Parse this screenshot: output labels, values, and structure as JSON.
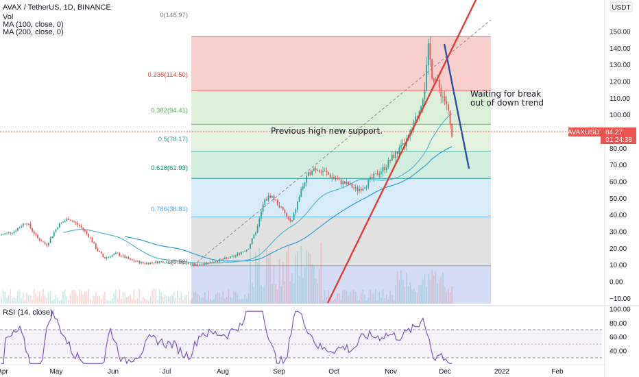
{
  "header": {
    "symbol_line": "AVAX / TetherUS, 1D, BINANCE",
    "vol_label": "Vol",
    "ma100_label": "MA (100, close, 0)",
    "ma200_label": "MA (200, close, 0)"
  },
  "price_axis": {
    "currency": "USDT",
    "ticks": [
      "150.00",
      "140.00",
      "130.00",
      "120.00",
      "110.00",
      "100.00",
      "90.00",
      "80.00",
      "70.00",
      "60.00",
      "50.00",
      "40.00",
      "30.00",
      "20.00",
      "10.00",
      "0.00",
      "−10.00"
    ],
    "tag_symbol": "AVAXUSDT",
    "tag_price": "84.27",
    "tag_countdown": "01:24:38"
  },
  "time_axis": {
    "ticks": [
      "Apr",
      "May",
      "Jun",
      "Jul",
      "Aug",
      "Sep",
      "Oct",
      "Nov",
      "Dec",
      "2022",
      "Feb"
    ]
  },
  "rsi": {
    "label": "RSI (14, close)",
    "ticks": [
      "100.00",
      "80.00",
      "60.00",
      "40.00"
    ]
  },
  "fib_labels": {
    "l0": "0(146.97)",
    "l236": "0.236(114.50)",
    "l382": "0.382(94.41)",
    "l5": "0.5(78.17)",
    "l618": "0.618(61.93)",
    "l786": "0.786(38.81)",
    "l1": "1(9.58)"
  },
  "annotations": {
    "support": "Previous high new support.",
    "waiting_1": "Waiting for break",
    "waiting_2": "out of down trend"
  },
  "colors": {
    "up": "#26a69a",
    "down": "#ef5350",
    "ma100": "#4fb6d1",
    "ma200": "#2b9bd0",
    "trend_up": "#e53935",
    "trend_down": "#2a4fa3",
    "rsi_line": "#7e57c2",
    "fib0": "#f8cfcc",
    "fib236": "#dcefd9",
    "fib382": "#e4f3df",
    "fib5": "#d2eedf",
    "fib618": "#d8ebf8",
    "fib786": "#e2e2e2",
    "fib1": "#d4dcf8"
  },
  "chart_data": {
    "type": "candlestick",
    "title": "AVAX / TetherUS, 1D, BINANCE",
    "y_unit": "USDT",
    "ylim": [
      -10,
      155
    ],
    "current_price": 84.27,
    "fibonacci_levels": [
      {
        "ratio": 0,
        "price": 146.97
      },
      {
        "ratio": 0.236,
        "price": 114.5
      },
      {
        "ratio": 0.382,
        "price": 94.41
      },
      {
        "ratio": 0.5,
        "price": 78.17
      },
      {
        "ratio": 0.618,
        "price": 61.93
      },
      {
        "ratio": 0.786,
        "price": 38.81
      },
      {
        "ratio": 1,
        "price": 9.58
      }
    ],
    "rsi_ticks": [
      100,
      80,
      60,
      40
    ],
    "approx_close_path": [
      {
        "month": "Apr",
        "close": 28
      },
      {
        "month": "May",
        "close": 32
      },
      {
        "month": "Jun",
        "close": 18
      },
      {
        "month": "Jul",
        "close": 12
      },
      {
        "month": "Aug",
        "close": 30
      },
      {
        "month": "Sep",
        "close": 65
      },
      {
        "month": "Oct",
        "close": 58
      },
      {
        "month": "Nov",
        "close": 90
      },
      {
        "month": "Dec",
        "close": 84
      }
    ]
  }
}
